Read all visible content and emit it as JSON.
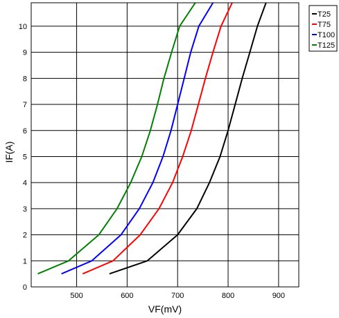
{
  "chart_data": {
    "type": "line",
    "title": "",
    "xlabel": "VF(mV)",
    "ylabel": "IF(A)",
    "xlim": [
      410,
      940
    ],
    "ylim": [
      0,
      10.9
    ],
    "xticks": [
      500,
      600,
      700,
      800,
      900
    ],
    "yticks": [
      0,
      1,
      2,
      3,
      4,
      5,
      6,
      7,
      8,
      9,
      10
    ],
    "grid": true,
    "legend_position": "top-right outside",
    "series": [
      {
        "name": "T25",
        "color": "#000000",
        "points": [
          [
            565,
            0.5
          ],
          [
            640,
            1.0
          ],
          [
            700,
            2.0
          ],
          [
            738,
            3.0
          ],
          [
            763,
            4.0
          ],
          [
            784,
            5.0
          ],
          [
            800,
            6.0
          ],
          [
            814,
            7.0
          ],
          [
            828,
            8.0
          ],
          [
            843,
            9.0
          ],
          [
            858,
            10.0
          ],
          [
            875,
            10.9
          ]
        ]
      },
      {
        "name": "T75",
        "color": "#ff0000",
        "points": [
          [
            512,
            0.5
          ],
          [
            572,
            1.0
          ],
          [
            626,
            2.0
          ],
          [
            663,
            3.0
          ],
          [
            690,
            4.0
          ],
          [
            710,
            5.0
          ],
          [
            727,
            6.0
          ],
          [
            741,
            7.0
          ],
          [
            755,
            8.0
          ],
          [
            770,
            9.0
          ],
          [
            786,
            10.0
          ],
          [
            808,
            10.9
          ]
        ]
      },
      {
        "name": "T100",
        "color": "#0000ff",
        "points": [
          [
            470,
            0.5
          ],
          [
            530,
            1.0
          ],
          [
            588,
            2.0
          ],
          [
            624,
            3.0
          ],
          [
            651,
            4.0
          ],
          [
            671,
            5.0
          ],
          [
            687,
            6.0
          ],
          [
            700,
            7.0
          ],
          [
            713,
            8.0
          ],
          [
            726,
            9.0
          ],
          [
            742,
            10.0
          ],
          [
            770,
            10.9
          ]
        ]
      },
      {
        "name": "T125",
        "color": "#008000",
        "points": [
          [
            423,
            0.5
          ],
          [
            484,
            1.0
          ],
          [
            544,
            2.0
          ],
          [
            580,
            3.0
          ],
          [
            607,
            4.0
          ],
          [
            629,
            5.0
          ],
          [
            646,
            6.0
          ],
          [
            660,
            7.0
          ],
          [
            673,
            8.0
          ],
          [
            688,
            9.0
          ],
          [
            704,
            10.0
          ],
          [
            735,
            10.9
          ]
        ]
      }
    ]
  }
}
